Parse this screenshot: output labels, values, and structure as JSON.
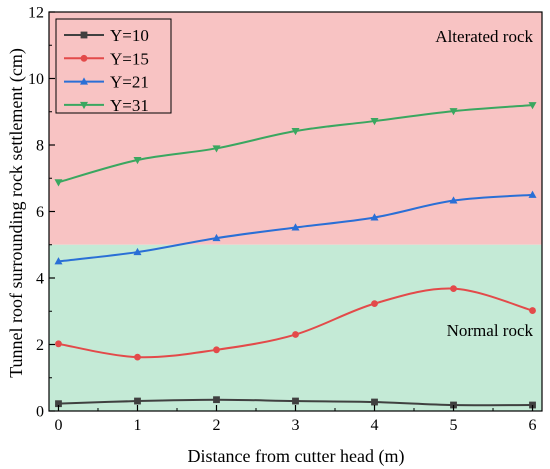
{
  "chart_data": {
    "type": "line",
    "xlabel": "Distance from cutter head (m)",
    "ylabel": "Tunnel roof surrounding rock settlement (cm)",
    "xlim": [
      -0.12,
      6.12
    ],
    "ylim": [
      0,
      12
    ],
    "x_ticks": [
      0,
      1,
      2,
      3,
      4,
      5,
      6
    ],
    "y_ticks": [
      0,
      2,
      4,
      6,
      8,
      10,
      12
    ],
    "grid": false,
    "legend_position": "top-left",
    "regions": [
      {
        "label": "Alterated rock",
        "y_range": [
          5,
          12
        ],
        "color": "#f8c3c3"
      },
      {
        "label": "Normal rock",
        "y_range": [
          0,
          5
        ],
        "color": "#c4ead6"
      }
    ],
    "x": [
      0,
      1,
      2,
      3,
      4,
      5,
      6
    ],
    "series": [
      {
        "name": "Y=10",
        "color": "#404040",
        "marker": "square",
        "values": [
          0.22,
          0.3,
          0.34,
          0.3,
          0.27,
          0.18,
          0.18
        ]
      },
      {
        "name": "Y=15",
        "color": "#e34a4a",
        "marker": "circle",
        "values": [
          2.02,
          1.62,
          1.84,
          2.3,
          3.23,
          3.68,
          3.02
        ]
      },
      {
        "name": "Y=21",
        "color": "#2a6fd6",
        "marker": "triangle-up",
        "values": [
          4.5,
          4.78,
          5.2,
          5.52,
          5.82,
          6.33,
          6.5
        ]
      },
      {
        "name": "Y=31",
        "color": "#3aa760",
        "marker": "triangle-down",
        "values": [
          6.88,
          7.55,
          7.9,
          8.42,
          8.72,
          9.02,
          9.2
        ]
      }
    ]
  }
}
